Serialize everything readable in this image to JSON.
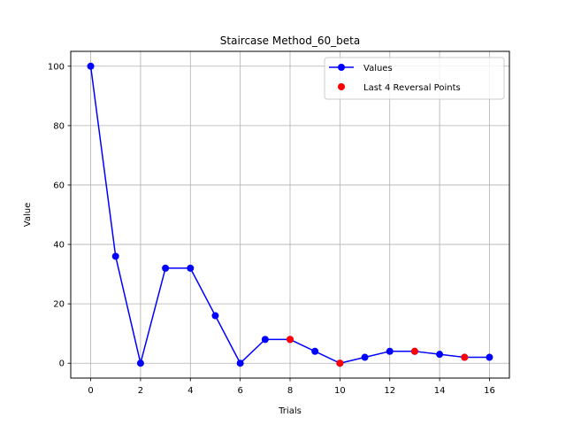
{
  "chart_data": {
    "type": "line",
    "title": "Staircase Method_60_beta",
    "xlabel": "Trials",
    "ylabel": "Value",
    "xlim": [
      -0.8,
      16.8
    ],
    "ylim": [
      -5,
      105
    ],
    "xticks": [
      0,
      2,
      4,
      6,
      8,
      10,
      12,
      14,
      16
    ],
    "yticks": [
      0,
      20,
      40,
      60,
      80,
      100
    ],
    "grid": true,
    "legend_position": "top-right",
    "series": [
      {
        "name": "Values",
        "color": "#0000ff",
        "marker": "circle",
        "x": [
          0,
          1,
          2,
          3,
          4,
          5,
          6,
          7,
          8,
          9,
          10,
          11,
          12,
          13,
          14,
          15,
          16
        ],
        "y": [
          100,
          36,
          0,
          32,
          32,
          16,
          0,
          8,
          8,
          4,
          0,
          2,
          4,
          4,
          3,
          2,
          2
        ]
      },
      {
        "name": "Last 4 Reversal Points",
        "color": "#ff0000",
        "marker": "circle",
        "line": false,
        "x": [
          8,
          10,
          13,
          15
        ],
        "y": [
          8,
          0,
          4,
          2
        ]
      }
    ]
  }
}
